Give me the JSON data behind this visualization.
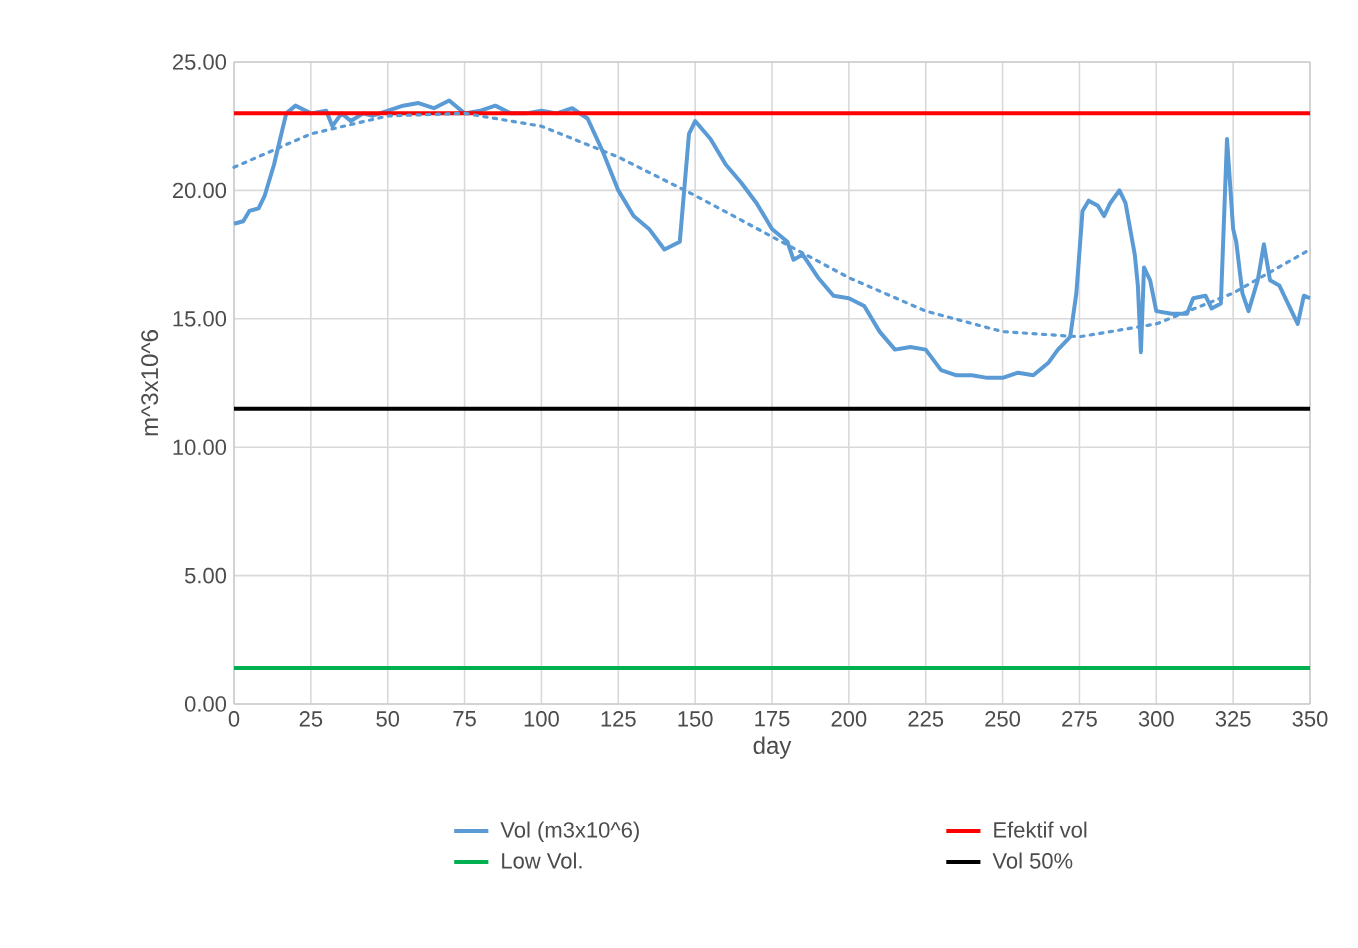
{
  "chart_data": {
    "type": "line",
    "xlabel": "day",
    "ylabel": "m^3x10^6",
    "xlim": [
      0,
      350
    ],
    "xticks": [
      0,
      25,
      50,
      75,
      100,
      125,
      150,
      175,
      200,
      225,
      250,
      275,
      300,
      325,
      350
    ],
    "ylim": [
      0,
      25
    ],
    "yticks": [
      {
        "value": 0,
        "label": "0.00"
      },
      {
        "value": 5,
        "label": "5.00"
      },
      {
        "value": 10,
        "label": "10.00"
      },
      {
        "value": 15,
        "label": "15.00"
      },
      {
        "value": 20,
        "label": "20.00"
      },
      {
        "value": 25,
        "label": "25.00"
      }
    ],
    "grid": true,
    "legend": "bottom",
    "marker": "none",
    "series": [
      {
        "name": "Vol (m3x10^6)",
        "color": "#5b9bd5",
        "line_style": "solid",
        "x": [
          0,
          3,
          5,
          8,
          10,
          13,
          15,
          17,
          20,
          25,
          30,
          32,
          35,
          38,
          42,
          45,
          50,
          55,
          60,
          65,
          70,
          75,
          80,
          85,
          90,
          95,
          100,
          105,
          110,
          115,
          120,
          125,
          130,
          135,
          140,
          145,
          148,
          150,
          155,
          160,
          165,
          170,
          175,
          180,
          182,
          185,
          190,
          195,
          200,
          205,
          210,
          215,
          220,
          225,
          230,
          235,
          240,
          245,
          250,
          255,
          260,
          265,
          268,
          272,
          274,
          276,
          278,
          281,
          283,
          285,
          288,
          290,
          293,
          294,
          295,
          296,
          298,
          300,
          305,
          310,
          312,
          316,
          318,
          321,
          323,
          325,
          326,
          328,
          330,
          333,
          335,
          337,
          340,
          344,
          346,
          348,
          350
        ],
        "values": [
          18.7,
          18.8,
          19.2,
          19.3,
          19.8,
          21,
          22,
          23,
          23.3,
          23,
          23.1,
          22.5,
          23,
          22.7,
          23,
          22.9,
          23.1,
          23.3,
          23.4,
          23.2,
          23.5,
          23,
          23.1,
          23.3,
          23,
          23,
          23.1,
          23,
          23.2,
          22.8,
          21.5,
          20,
          19,
          18.5,
          17.7,
          18,
          22.2,
          22.7,
          22,
          21,
          20.3,
          19.5,
          18.5,
          18,
          17.3,
          17.5,
          16.6,
          15.9,
          15.8,
          15.5,
          14.5,
          13.8,
          13.9,
          13.8,
          13,
          12.8,
          12.8,
          12.7,
          12.7,
          12.9,
          12.8,
          13.3,
          13.8,
          14.3,
          16,
          19.2,
          19.6,
          19.4,
          19,
          19.5,
          20,
          19.5,
          17.5,
          16.3,
          13.7,
          17,
          16.5,
          15.3,
          15.2,
          15.2,
          15.8,
          15.9,
          15.4,
          15.6,
          22,
          18.5,
          18,
          16,
          15.3,
          16.5,
          17.9,
          16.5,
          16.3,
          15.3,
          14.8,
          15.9,
          15.8
        ]
      },
      {
        "name": "Efektif vol",
        "color": "#ff0000",
        "line_style": "solid",
        "x": [
          0,
          350
        ],
        "values": [
          23,
          23
        ]
      },
      {
        "name": "Low Vol.",
        "color": "#00b050",
        "line_style": "solid",
        "x": [
          0,
          350
        ],
        "values": [
          1.4,
          1.4
        ]
      },
      {
        "name": "Vol 50%",
        "color": "#000000",
        "line_style": "solid",
        "x": [
          0,
          350
        ],
        "values": [
          11.5,
          11.5
        ]
      },
      {
        "color": "#5b9bd5",
        "line_style": "dotted",
        "x": [
          0,
          25,
          50,
          75,
          100,
          125,
          150,
          175,
          200,
          225,
          250,
          275,
          300,
          325,
          350
        ],
        "values": [
          20.9,
          22.2,
          22.9,
          23.0,
          22.5,
          21.3,
          19.8,
          18.2,
          16.6,
          15.3,
          14.5,
          14.3,
          14.8,
          16.0,
          17.7
        ]
      }
    ]
  }
}
